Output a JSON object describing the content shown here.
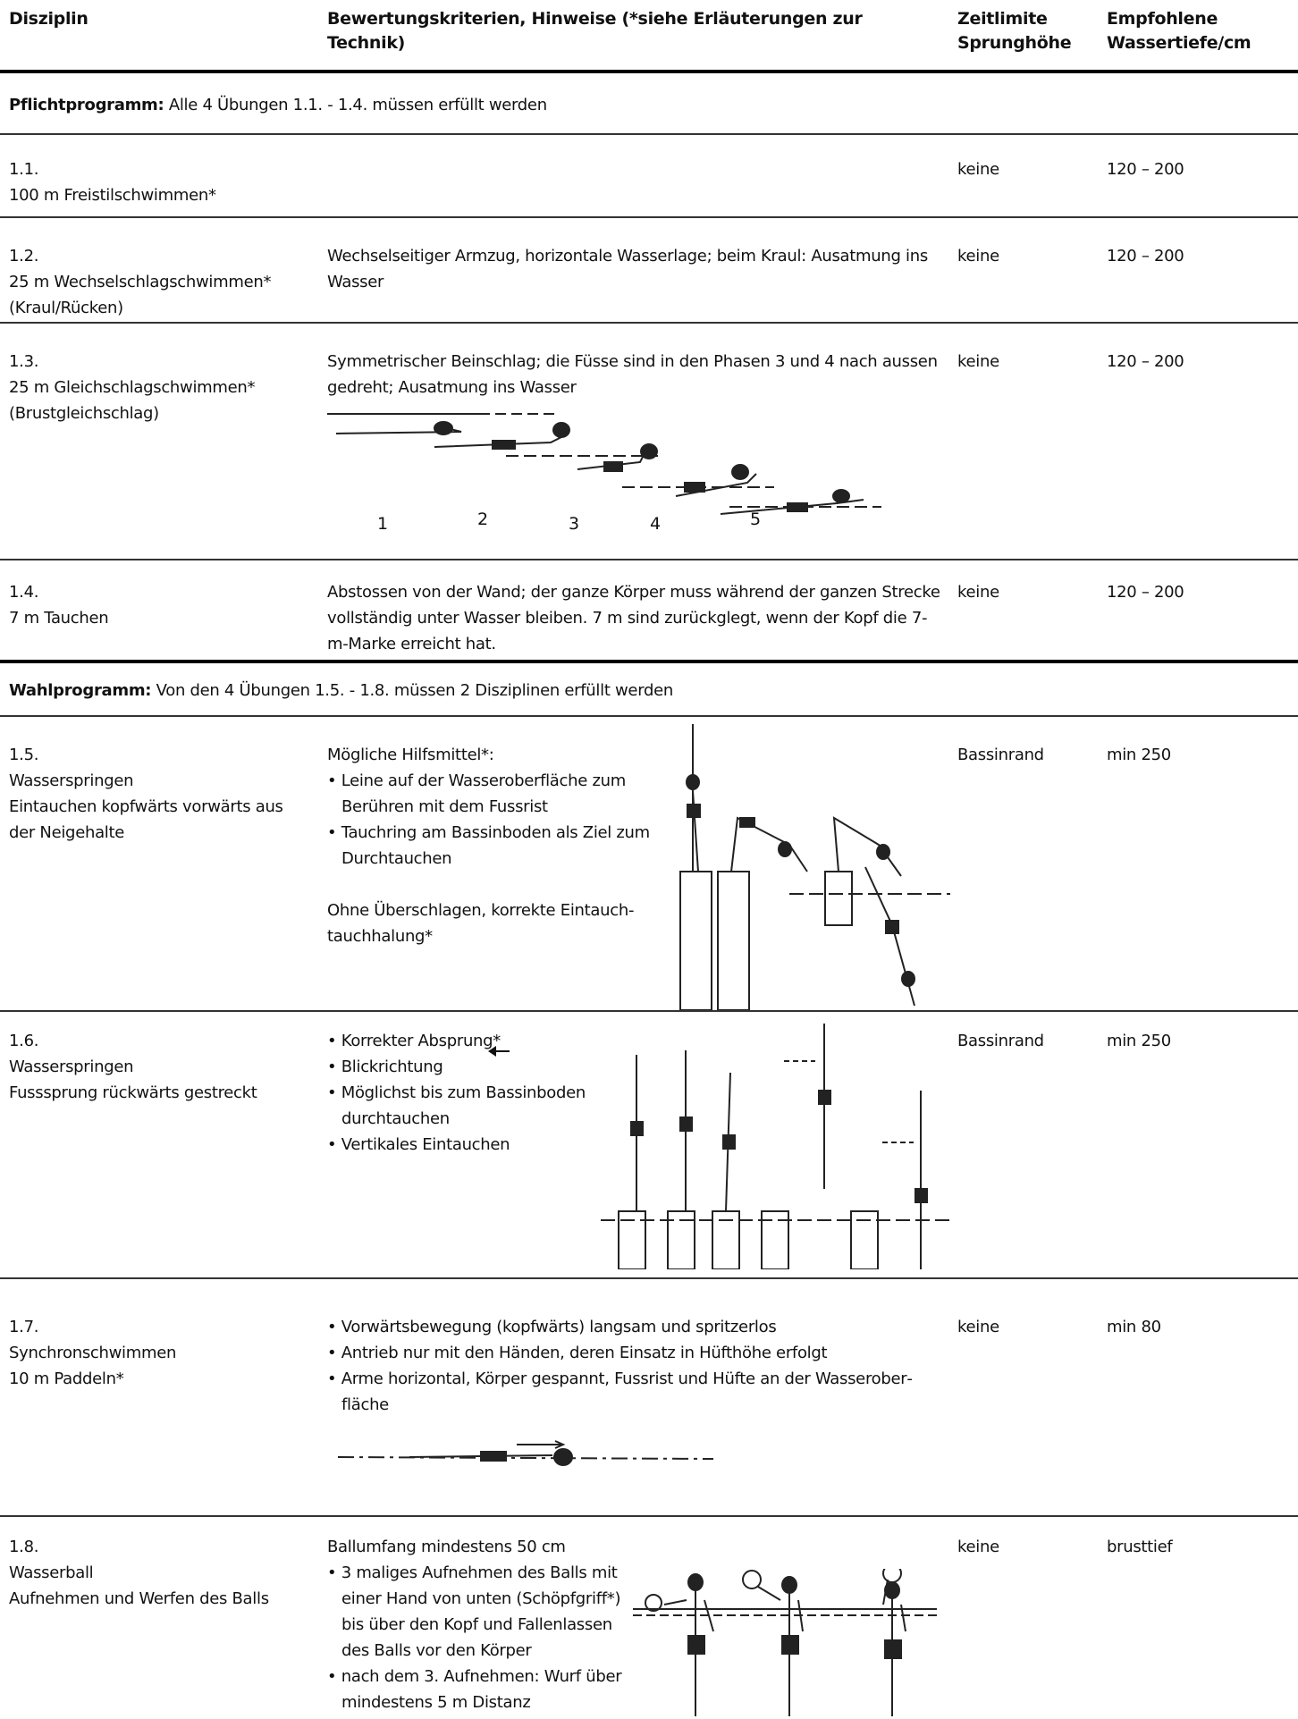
{
  "table": {
    "header": [
      "Disziplin",
      "Bewertungskriterien, Hinweise (*siehe Erläuterungen zur Technik)",
      "Zeitlimite Sprunghöhe",
      "Empfohlene Wassertiefe/cm"
    ],
    "sections": [
      {
        "title": "Pflichtprogramm:",
        "note": "Alle 4 Übungen 1.1. - 1.4. müssen erfüllt werden",
        "rows": [
          {
            "discipline": [
              "1.1.",
              "100 m Freistilschwimmen*"
            ],
            "criteria": [],
            "time": "keine",
            "depth": "120 – 200"
          },
          {
            "discipline": [
              "1.2.",
              "25 m Wechselschlagschwimmen* (Kraul/Rücken)"
            ],
            "criteria": [
              "Wechselseitiger Armzug, horizontale Wasserlage; beim Kraul: Ausatmung ins Wasser"
            ],
            "time": "keine",
            "depth": "120 – 200"
          },
          {
            "discipline": [
              "1.3.",
              "25 m Gleichschlagschwimmen* (Brustgleichschlag)"
            ],
            "criteria": [
              "Symmetrischer Beinschlag; die Füsse sind in den Phasen 3 und 4 nach aussen gedreht; Ausatmung ins Wasser"
            ],
            "time": "keine",
            "depth": "120 – 200",
            "figure_labels": [
              "1",
              "2",
              "3",
              "4",
              "5"
            ]
          },
          {
            "discipline": [
              "1.4.",
              "7 m Tauchen"
            ],
            "criteria": [
              "Abstossen von der Wand; der ganze Körper muss während der ganzen Strecke vollständig unter Wasser bleiben. 7 m sind zurückglegt, wenn der Kopf die 7-m-Marke erreicht hat."
            ],
            "time": "keine",
            "depth": "120 – 200"
          }
        ]
      },
      {
        "title": "Wahlprogramm:",
        "note": "Von den 4 Übungen 1.5. - 1.8. müssen 2 Disziplinen erfüllt werden",
        "rows": [
          {
            "discipline": [
              "1.5.",
              "Wasserspringen",
              "Eintauchen kopfwärts vorwärts aus der Neigehalte"
            ],
            "criteria": [
              "Mögliche Hilfsmittel*:",
              "• Leine auf der Wasseroberfläche zum Berühren mit dem Fussrist",
              "• Tauchring am Bassinboden als Ziel zum Durchtauchen",
              "Ohne Überschlagen, korrekte Eintauch­tauchhalung*"
            ],
            "time": "Bassinrand",
            "depth": "min 250"
          },
          {
            "discipline": [
              "1.6.",
              "Wasserspringen",
              "Fusssprung rückwärts gestreckt"
            ],
            "criteria": [
              "• Korrekter Absprung*",
              "• Blickrichtung",
              "• Möglichst bis zum Bassinboden durchtauchen",
              "• Vertikales Eintauchen"
            ],
            "time": "Bassinrand",
            "depth": "min 250"
          },
          {
            "discipline": [
              "1.7.",
              "Synchronschwimmen",
              "10 m Paddeln*"
            ],
            "criteria": [
              "• Vorwärtsbewegung (kopfwärts) langsam und spritzerlos",
              "• Antrieb nur mit den Händen, deren Einsatz in Hüfthöhe erfolgt",
              "• Arme horizontal, Körper gespannt, Fussrist und Hüfte an der Wasserober­fläche"
            ],
            "time": "keine",
            "depth": "min 80"
          },
          {
            "discipline": [
              "1.8.",
              "Wasserball",
              "Aufnehmen und Werfen des Balls"
            ],
            "criteria": [
              "Ballumfang mindestens 50 cm",
              "• 3 maliges Aufnehmen des Balls mit einer Hand von unten (Schöpfgriff*) bis über den Kopf und Fallenlassen des Balls vor den Körper",
              "• nach dem 3. Aufnehmen: Wurf über mindestens 5 m Distanz"
            ],
            "time": "keine",
            "depth": "brusttief"
          }
        ]
      }
    ]
  }
}
